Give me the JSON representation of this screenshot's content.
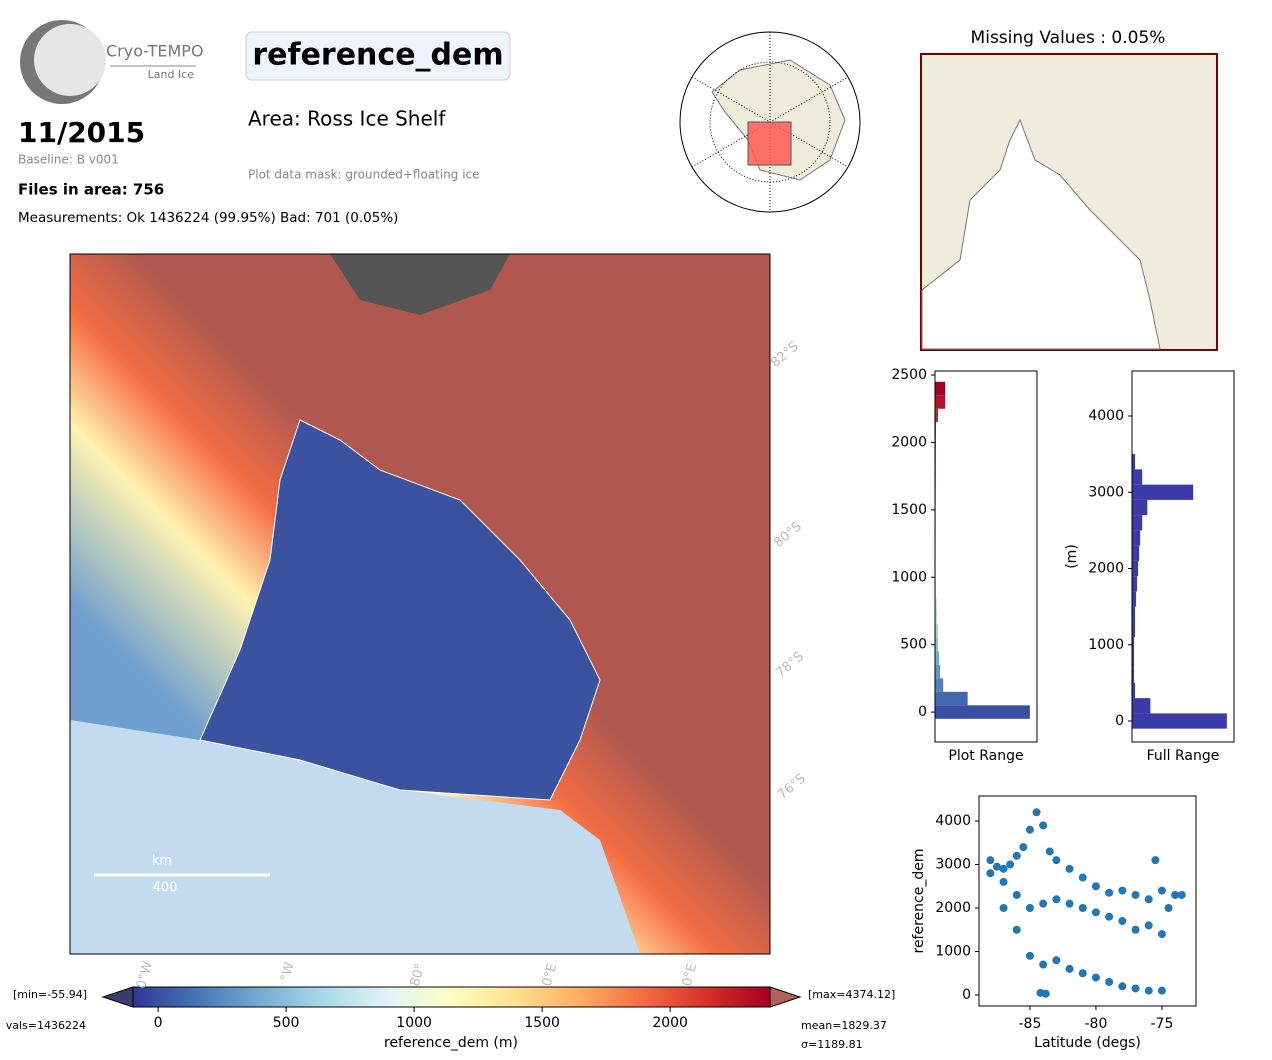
{
  "header": {
    "product": "Cryo-TEMPO",
    "subproduct": "Land Ice",
    "date": "11/2015",
    "baseline": "Baseline: B v001",
    "files": "Files in area: 756",
    "measurements": "Measurements: Ok 1436224 (99.95%) Bad: 701 (0.05%)",
    "title": "reference_dem",
    "area": "Area: Ross Ice Shelf",
    "mask": "Plot data mask: grounded+floating ice",
    "missing": "Missing Values : 0.05%"
  },
  "map": {
    "lat_labels": [
      "82°S",
      "80°S",
      "78°S",
      "76°S"
    ],
    "lon_labels": [
      "0°W",
      "°W",
      "80°",
      "0°E",
      "0°E"
    ],
    "scale_unit": "km",
    "scale_length": "400"
  },
  "colorbar": {
    "label": "reference_dem (m)",
    "xlim": [
      -98,
      2390
    ],
    "xticks": [
      0,
      500,
      1000,
      1500,
      2000
    ],
    "min_label": "[min=-55.94]",
    "max_label": "[max=4374.12]",
    "nvals_label": "vals=1436224",
    "mean_label": "mean=1829.37",
    "std_label": "σ=1189.81"
  },
  "chart_data": [
    {
      "type": "histogram",
      "orientation": "horizontal",
      "xlabel": "Plot Range",
      "colored_by_value": true,
      "bins": [
        -50,
        50,
        150,
        250,
        350,
        450,
        550,
        650,
        750,
        850,
        950,
        1050,
        1150,
        1250,
        1350,
        1450,
        1550,
        1650,
        1750,
        1850,
        1950,
        2050,
        2150,
        2250,
        2350,
        2450
      ],
      "values": [
        93,
        32,
        8,
        5,
        4,
        3,
        3,
        2,
        2,
        1,
        1,
        1,
        1,
        1,
        1,
        1,
        1,
        1,
        1,
        1,
        1,
        1,
        3,
        10,
        10
      ],
      "xlim": [
        0,
        100
      ],
      "ylim": [
        -222,
        2530
      ],
      "yticks": [
        0,
        500,
        1000,
        1500,
        2000,
        2500
      ]
    },
    {
      "type": "histogram",
      "orientation": "horizontal",
      "xlabel": "Full Range",
      "ylabel": "(m)",
      "color": "#3a3aa8",
      "bins": [
        -100,
        100,
        300,
        500,
        700,
        900,
        1100,
        1300,
        1500,
        1700,
        1900,
        2100,
        2300,
        2500,
        2700,
        2900,
        3100,
        3300,
        3500,
        3700,
        3900,
        4100,
        4300
      ],
      "values": [
        93,
        18,
        3,
        2,
        2,
        2,
        3,
        3,
        4,
        5,
        6,
        7,
        8,
        10,
        15,
        60,
        10,
        3,
        0,
        0,
        0,
        0
      ],
      "xlim": [
        0,
        100
      ],
      "ylim": [
        -275,
        4590
      ],
      "yticks": [
        0,
        1000,
        2000,
        3000,
        4000
      ]
    },
    {
      "type": "scatter",
      "xlabel": "Latitude (degs)",
      "ylabel": "reference_dem",
      "color": "#1f77b4",
      "x": [
        -88,
        -87.5,
        -87,
        -86.5,
        -86,
        -85.5,
        -85,
        -84.5,
        -84,
        -83.5,
        -83,
        -82,
        -81,
        -80,
        -79,
        -78,
        -77,
        -76,
        -75,
        -74,
        -73.5,
        -88,
        -87,
        -86,
        -85,
        -84,
        -83,
        -82,
        -81,
        -80,
        -79,
        -78,
        -77,
        -76,
        -75,
        -87,
        -86,
        -85,
        -84,
        -83,
        -82,
        -81,
        -80,
        -79,
        -78,
        -77,
        -76,
        -75,
        -84.2,
        -83.8,
        -75.5,
        -74.5
      ],
      "y": [
        3100,
        2950,
        2900,
        3000,
        3200,
        3400,
        3800,
        4200,
        3900,
        3300,
        3100,
        2900,
        2700,
        2500,
        2350,
        2400,
        2300,
        2200,
        2400,
        2300,
        2300,
        2800,
        2600,
        2300,
        2000,
        2100,
        2200,
        2100,
        2000,
        1900,
        1800,
        1700,
        1500,
        1600,
        1400,
        2000,
        1500,
        900,
        700,
        800,
        600,
        500,
        400,
        300,
        200,
        150,
        100,
        100,
        50,
        30,
        3100,
        2000
      ],
      "xlim": [
        -88.86,
        -72.42
      ],
      "ylim": [
        -253,
        4575
      ],
      "xticks": [
        -85,
        -80,
        -75
      ],
      "yticks": [
        0,
        1000,
        2000,
        3000,
        4000
      ]
    }
  ]
}
